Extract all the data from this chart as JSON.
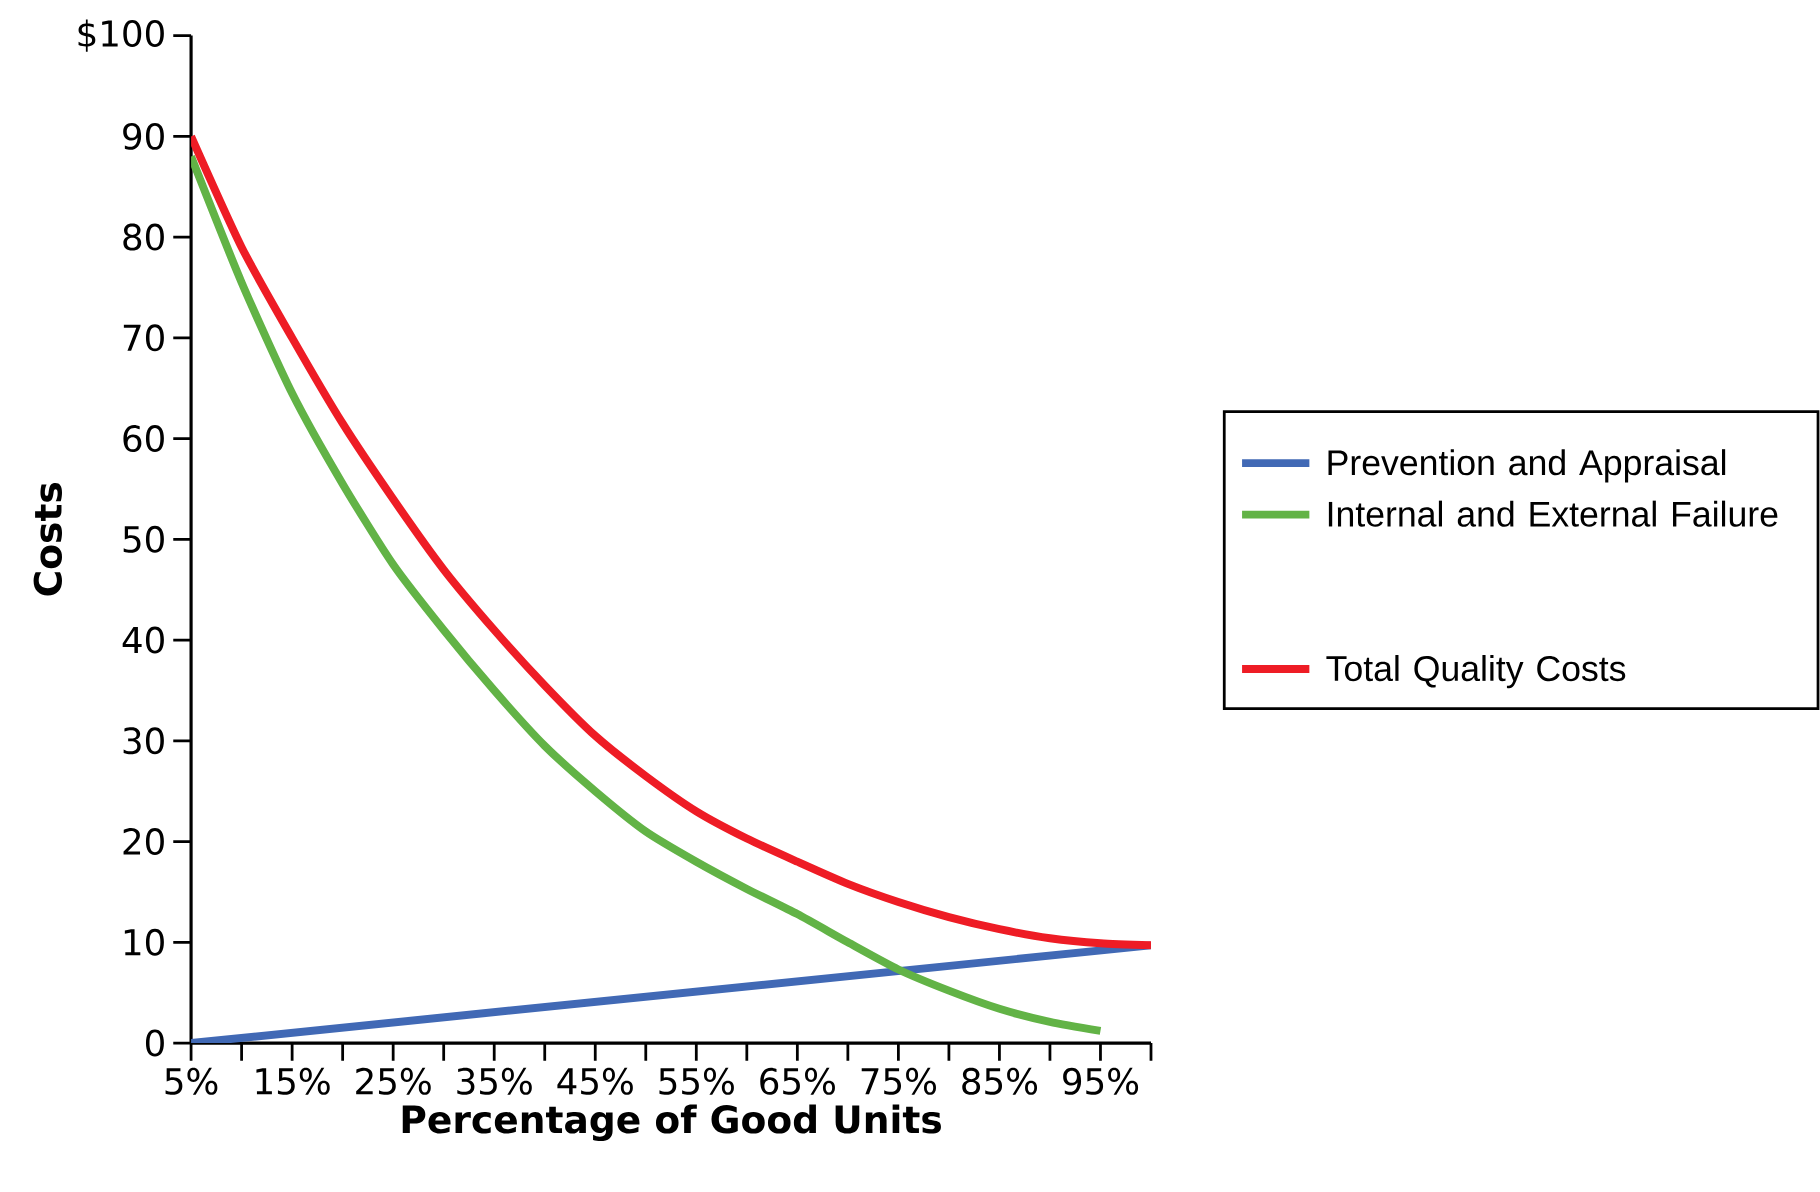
{
  "chart_data": {
    "type": "line",
    "xlabel": "Percentage of Good Units",
    "ylabel": "Costs",
    "xlim": [
      5,
      100
    ],
    "ylim": [
      0,
      100
    ],
    "xticks": [
      {
        "value": 5,
        "label": "5%"
      },
      {
        "value": 10,
        "label": null
      },
      {
        "value": 15,
        "label": "15%"
      },
      {
        "value": 20,
        "label": null
      },
      {
        "value": 25,
        "label": "25%"
      },
      {
        "value": 30,
        "label": null
      },
      {
        "value": 35,
        "label": "35%"
      },
      {
        "value": 40,
        "label": null
      },
      {
        "value": 45,
        "label": "45%"
      },
      {
        "value": 50,
        "label": null
      },
      {
        "value": 55,
        "label": "55%"
      },
      {
        "value": 60,
        "label": null
      },
      {
        "value": 65,
        "label": "65%"
      },
      {
        "value": 70,
        "label": null
      },
      {
        "value": 75,
        "label": "75%"
      },
      {
        "value": 80,
        "label": null
      },
      {
        "value": 85,
        "label": "85%"
      },
      {
        "value": 90,
        "label": null
      },
      {
        "value": 95,
        "label": "95%"
      },
      {
        "value": 100,
        "label": null
      }
    ],
    "yticks": [
      0,
      10,
      20,
      30,
      40,
      50,
      60,
      70,
      80,
      90,
      {
        "value": 100,
        "label": "$100"
      }
    ],
    "legend": "right",
    "grid": false,
    "marker": "none",
    "line_style": "solid",
    "series": [
      {
        "name": "Prevention and Appraisal",
        "color": "#4169b5",
        "x": [
          5,
          100
        ],
        "values": [
          0,
          9.7
        ]
      },
      {
        "name": "Internal and External Failure",
        "color": "#62b346",
        "x": [
          5,
          10,
          15,
          20,
          25,
          30,
          35,
          40,
          45,
          50,
          55,
          60,
          65,
          70,
          75,
          80,
          85,
          90,
          95
        ],
        "values": [
          88,
          75.5,
          64.5,
          55.5,
          47.5,
          41,
          35,
          29.5,
          25,
          21,
          18,
          15.3,
          12.8,
          10,
          7.3,
          5.2,
          3.4,
          2.1,
          1.2
        ]
      },
      {
        "name": "Total Quality Costs",
        "color": "#ee1c25",
        "x": [
          5,
          10,
          15,
          20,
          25,
          30,
          35,
          40,
          45,
          50,
          55,
          60,
          65,
          70,
          75,
          80,
          85,
          90,
          95,
          100
        ],
        "values": [
          90,
          79,
          70,
          61.5,
          54,
          47,
          41,
          35.5,
          30.5,
          26.5,
          23,
          20.3,
          18,
          15.8,
          14,
          12.5,
          11.3,
          10.4,
          9.9,
          9.7
        ]
      }
    ]
  }
}
